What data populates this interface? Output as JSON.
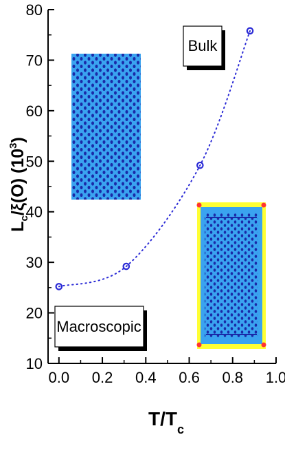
{
  "chart_data": {
    "type": "scatter",
    "x": [
      0.0,
      0.31,
      0.65,
      0.88
    ],
    "y": [
      25.2,
      29.2,
      49.2,
      75.8
    ],
    "xlim": [
      -0.05,
      1.0
    ],
    "ylim": [
      10,
      80
    ],
    "xticks": [
      "0.0",
      "0.2",
      "0.4",
      "0.6",
      "0.8",
      "1.0"
    ],
    "yticks": [
      "10",
      "20",
      "30",
      "40",
      "50",
      "60",
      "70",
      "80"
    ],
    "xlabel": "T/T",
    "xlabel_sub": "c",
    "ylabel_main": "L",
    "ylabel_sub": "c",
    "ylabel_rest": "/ξ(O) (10",
    "ylabel_sup": "3",
    "ylabel_close": ")",
    "marker_color": "#2b2bd6",
    "fit_line_style": "dotted",
    "grid": false
  },
  "annotations": {
    "bulk_label": "Bulk",
    "macroscopic_label": "Macroscopic"
  },
  "colors": {
    "marker": "#2b2bd6",
    "inset_blue": "#3aa3f0",
    "inset_dark": "#1a2aa8",
    "inset_frame": "#ffff33",
    "inset_corner": "#ff3333"
  }
}
